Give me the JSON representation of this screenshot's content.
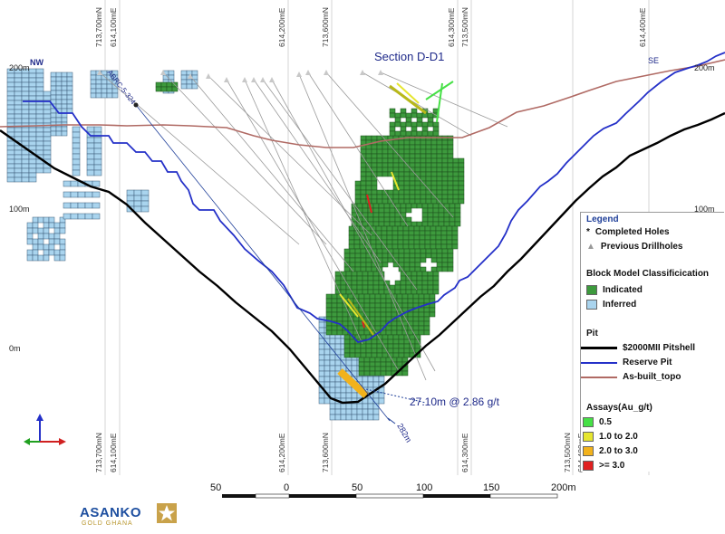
{
  "section": {
    "title": "Section D-D1",
    "left_direction": "NW",
    "right_direction": "SE"
  },
  "grid_top": [
    {
      "north": "713,700mN",
      "east": "614,100mE"
    },
    {
      "north": "614,200mE",
      "east": "713,600mN"
    },
    {
      "north": "614,300mE",
      "east": "713,500mN"
    },
    {
      "north": "614,400mE",
      "east": ""
    }
  ],
  "grid_bottom": [
    {
      "north": "713,700mN",
      "east": "614,100mE"
    },
    {
      "north": "614,200mE",
      "east": "713,600mN"
    },
    {
      "north": "614,300mE",
      "east": ""
    },
    {
      "north": "713,500mN",
      "east": "614,400mE"
    }
  ],
  "elevations": {
    "left_200": "200m",
    "left_100": "100m",
    "left_0": "0m",
    "right_200": "200m",
    "right_100": "100m"
  },
  "hole_label": "ABRC-5-324",
  "intercept": {
    "text": "27.10m @ 2.86 g/t",
    "depth": "282m"
  },
  "legend": {
    "title": "Legend",
    "completed_holes": "Completed Holes",
    "previous_drillholes": "Previous Drillholes",
    "block_model_heading": "Block Model Classificication",
    "indicated": "Indicated",
    "inferred": "Inferred",
    "pit_heading": "Pit",
    "pitshell": "$2000MII Pitshell",
    "reserve_pit": "Reserve Pit",
    "topo": "As-built_topo",
    "assays_heading": "Assays(Au_g/t)",
    "assay_bins": [
      "0.5",
      "1.0 to 2.0",
      "2.0 to 3.0",
      ">= 3.0"
    ]
  },
  "colors": {
    "indicated": "#3d9a3d",
    "inferred": "#a9d4ee",
    "pitshell": "#000000",
    "reserve_pit": "#2430c8",
    "topo": "#b06a64",
    "assay_0_5": "#46e046",
    "assay_1_2": "#e6e630",
    "assay_2_3": "#f2b21c",
    "assay_3": "#e02020",
    "legend_title": "#1f3f99"
  },
  "scale_bar": {
    "labels": [
      "50",
      "0",
      "50",
      "100",
      "150",
      "200m"
    ]
  },
  "logo": {
    "name": "ASANKO",
    "sub": "GOLD GHANA"
  }
}
